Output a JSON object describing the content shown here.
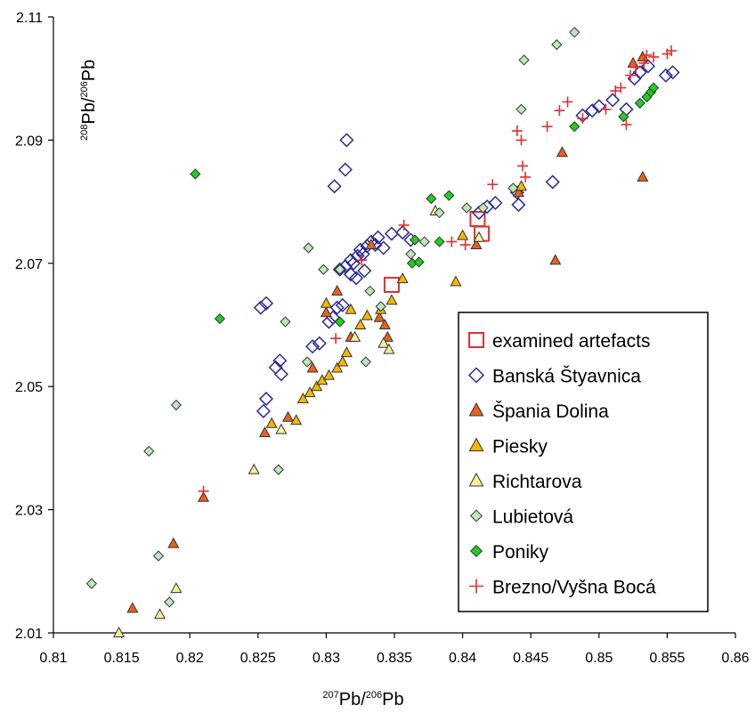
{
  "chart_data": {
    "type": "scatter",
    "title": "",
    "xlabel": {
      "sup1": "207",
      "base1": "Pb/",
      "sup2": "206",
      "base2": "Pb"
    },
    "ylabel": {
      "sup1": "208",
      "base1": "Pb/",
      "sup2": "206",
      "base2": "Pb"
    },
    "xlim": [
      0.81,
      0.86
    ],
    "ylim": [
      2.01,
      2.11
    ],
    "xticks": [
      "0.81",
      "0.815",
      "0.82",
      "0.825",
      "0.83",
      "0.835",
      "0.84",
      "0.845",
      "0.85",
      "0.855",
      "0.86"
    ],
    "yticks": [
      "2.01",
      "2.03",
      "2.05",
      "2.07",
      "2.09",
      "2.11"
    ],
    "grid": false,
    "legend_position": "lower-right",
    "series": [
      {
        "name": "examined artefacts",
        "marker": "square-open",
        "color": "#e03030",
        "points": [
          [
            0.8348,
            2.0665
          ],
          [
            0.8411,
            2.0772
          ],
          [
            0.8414,
            2.0748
          ]
        ]
      },
      {
        "name": "Banská Štyavnica",
        "marker": "diamond-open",
        "color": "#2a2a9a",
        "points": [
          [
            0.8252,
            2.0628
          ],
          [
            0.8256,
            2.0635
          ],
          [
            0.8254,
            2.046
          ],
          [
            0.8256,
            2.048
          ],
          [
            0.8263,
            2.0531
          ],
          [
            0.8266,
            2.0542
          ],
          [
            0.8267,
            2.052
          ],
          [
            0.829,
            2.0565
          ],
          [
            0.8295,
            2.057
          ],
          [
            0.8302,
            2.0605
          ],
          [
            0.8305,
            2.0612
          ],
          [
            0.8308,
            2.0628
          ],
          [
            0.8312,
            2.0632
          ],
          [
            0.8306,
            2.0825
          ],
          [
            0.8314,
            2.0852
          ],
          [
            0.8315,
            2.09
          ],
          [
            0.831,
            2.069
          ],
          [
            0.8314,
            2.0695
          ],
          [
            0.8318,
            2.0705
          ],
          [
            0.832,
            2.07
          ],
          [
            0.8323,
            2.0712
          ],
          [
            0.8325,
            2.0722
          ],
          [
            0.8327,
            2.0715
          ],
          [
            0.833,
            2.0728
          ],
          [
            0.8333,
            2.0735
          ],
          [
            0.8338,
            2.0742
          ],
          [
            0.8318,
            2.0682
          ],
          [
            0.8322,
            2.0676
          ],
          [
            0.8328,
            2.0688
          ],
          [
            0.8336,
            2.073
          ],
          [
            0.8342,
            2.0725
          ],
          [
            0.8348,
            2.0748
          ],
          [
            0.8356,
            2.075
          ],
          [
            0.8362,
            2.0738
          ],
          [
            0.8412,
            2.0782
          ],
          [
            0.8418,
            2.0792
          ],
          [
            0.8424,
            2.0798
          ],
          [
            0.844,
            2.0815
          ],
          [
            0.8441,
            2.0795
          ],
          [
            0.8466,
            2.0832
          ],
          [
            0.8488,
            2.094
          ],
          [
            0.8495,
            2.0948
          ],
          [
            0.85,
            2.0955
          ],
          [
            0.851,
            2.0965
          ],
          [
            0.852,
            2.095
          ],
          [
            0.8526,
            2.1
          ],
          [
            0.853,
            2.101
          ],
          [
            0.8536,
            2.102
          ],
          [
            0.8549,
            2.1005
          ],
          [
            0.8554,
            2.101
          ]
        ]
      },
      {
        "name": "Špania Dolina",
        "marker": "triangle",
        "color": "#e8601c",
        "points": [
          [
            0.8158,
            2.014
          ],
          [
            0.8188,
            2.0245
          ],
          [
            0.821,
            2.032
          ],
          [
            0.8255,
            2.0425
          ],
          [
            0.8272,
            2.045
          ],
          [
            0.829,
            2.053
          ],
          [
            0.83,
            2.062
          ],
          [
            0.8308,
            2.0655
          ],
          [
            0.8318,
            2.058
          ],
          [
            0.8333,
            2.073
          ],
          [
            0.8339,
            2.0612
          ],
          [
            0.8343,
            2.06
          ],
          [
            0.8345,
            2.058
          ],
          [
            0.841,
            2.073
          ],
          [
            0.8441,
            2.0815
          ],
          [
            0.8468,
            2.0705
          ],
          [
            0.8473,
            2.088
          ],
          [
            0.8532,
            2.084
          ],
          [
            0.8525,
            2.1025
          ],
          [
            0.8532,
            2.1035
          ]
        ]
      },
      {
        "name": "Piesky",
        "marker": "triangle",
        "color": "#f5b800",
        "points": [
          [
            0.826,
            2.044
          ],
          [
            0.8278,
            2.0445
          ],
          [
            0.8283,
            2.048
          ],
          [
            0.8288,
            2.049
          ],
          [
            0.8293,
            2.05
          ],
          [
            0.8297,
            2.051
          ],
          [
            0.8302,
            2.0518
          ],
          [
            0.8308,
            2.053
          ],
          [
            0.8312,
            2.054
          ],
          [
            0.8315,
            2.0555
          ],
          [
            0.83,
            2.0635
          ],
          [
            0.8318,
            2.0625
          ],
          [
            0.8325,
            2.06
          ],
          [
            0.833,
            2.0615
          ],
          [
            0.834,
            2.0625
          ],
          [
            0.8348,
            2.064
          ],
          [
            0.8356,
            2.0675
          ],
          [
            0.8395,
            2.067
          ],
          [
            0.84,
            2.0745
          ],
          [
            0.8443,
            2.0825
          ]
        ]
      },
      {
        "name": "Richtarova",
        "marker": "triangle",
        "color": "#f7f09a",
        "points": [
          [
            0.8148,
            2.01
          ],
          [
            0.8178,
            2.013
          ],
          [
            0.819,
            2.0172
          ],
          [
            0.8247,
            2.0365
          ],
          [
            0.8267,
            2.043
          ],
          [
            0.8321,
            2.058
          ],
          [
            0.8342,
            2.057
          ],
          [
            0.8346,
            2.056
          ],
          [
            0.838,
            2.0785
          ],
          [
            0.8412,
            2.0742
          ]
        ]
      },
      {
        "name": "Lubietová",
        "marker": "diamond",
        "color": "#bde8bd",
        "points": [
          [
            0.8128,
            2.018
          ],
          [
            0.817,
            2.0395
          ],
          [
            0.8177,
            2.0225
          ],
          [
            0.8185,
            2.015
          ],
          [
            0.819,
            2.047
          ],
          [
            0.8265,
            2.0365
          ],
          [
            0.827,
            2.0605
          ],
          [
            0.8287,
            2.0725
          ],
          [
            0.8286,
            2.054
          ],
          [
            0.8298,
            2.069
          ],
          [
            0.831,
            2.069
          ],
          [
            0.8329,
            2.054
          ],
          [
            0.8332,
            2.0655
          ],
          [
            0.834,
            2.063
          ],
          [
            0.8362,
            2.0715
          ],
          [
            0.8372,
            2.0735
          ],
          [
            0.8383,
            2.0782
          ],
          [
            0.8403,
            2.079
          ],
          [
            0.8415,
            2.079
          ],
          [
            0.8437,
            2.0822
          ],
          [
            0.8443,
            2.095
          ],
          [
            0.8445,
            2.103
          ],
          [
            0.8469,
            2.1055
          ],
          [
            0.8482,
            2.1075
          ]
        ]
      },
      {
        "name": "Poniky",
        "marker": "diamond",
        "color": "#1fcf1f",
        "points": [
          [
            0.8204,
            2.0845
          ],
          [
            0.8222,
            2.061
          ],
          [
            0.831,
            2.0605
          ],
          [
            0.8363,
            2.07
          ],
          [
            0.8368,
            2.0702
          ],
          [
            0.8365,
            2.0738
          ],
          [
            0.8377,
            2.0805
          ],
          [
            0.8383,
            2.0735
          ],
          [
            0.839,
            2.081
          ],
          [
            0.8482,
            2.0922
          ],
          [
            0.8518,
            2.0938
          ],
          [
            0.853,
            2.096
          ],
          [
            0.8535,
            2.097
          ],
          [
            0.8538,
            2.0978
          ],
          [
            0.854,
            2.0985
          ]
        ]
      },
      {
        "name": "Brezno/Vyšna Bocá",
        "marker": "plus",
        "color": "#e03030",
        "points": [
          [
            0.821,
            2.033
          ],
          [
            0.8307,
            2.0578
          ],
          [
            0.8326,
            2.0705
          ],
          [
            0.8357,
            2.0762
          ],
          [
            0.8392,
            2.0735
          ],
          [
            0.8402,
            2.073
          ],
          [
            0.8422,
            2.0828
          ],
          [
            0.844,
            2.0915
          ],
          [
            0.8443,
            2.09
          ],
          [
            0.8444,
            2.0858
          ],
          [
            0.8446,
            2.084
          ],
          [
            0.8462,
            2.0922
          ],
          [
            0.8471,
            2.0948
          ],
          [
            0.8477,
            2.0962
          ],
          [
            0.8488,
            2.0935
          ],
          [
            0.8505,
            2.095
          ],
          [
            0.8512,
            2.098
          ],
          [
            0.8516,
            2.0985
          ],
          [
            0.852,
            2.0925
          ],
          [
            0.8523,
            2.1005
          ],
          [
            0.8527,
            2.1018
          ],
          [
            0.8533,
            2.1025
          ],
          [
            0.8535,
            2.1038
          ],
          [
            0.854,
            2.1035
          ],
          [
            0.855,
            2.104
          ],
          [
            0.8553,
            2.1045
          ]
        ]
      }
    ]
  }
}
